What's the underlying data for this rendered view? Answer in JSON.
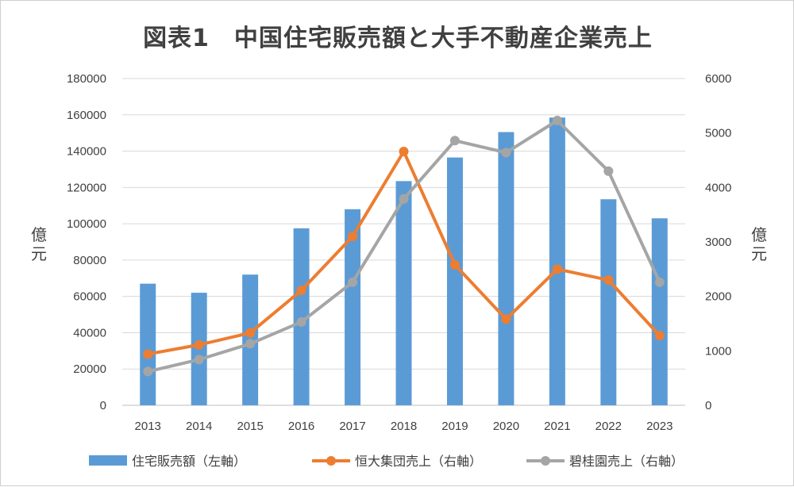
{
  "chart_data": {
    "type": "bar",
    "title": "図表1　中国住宅販売額と大手不動産企業売上",
    "ylabel": "億元",
    "y2label": "億元",
    "categories": [
      "2013",
      "2014",
      "2015",
      "2016",
      "2017",
      "2018",
      "2019",
      "2020",
      "2021",
      "2022",
      "2023"
    ],
    "ylim": [
      0,
      180000
    ],
    "y2lim": [
      0,
      6000
    ],
    "yticks": [
      "0",
      "20000",
      "40000",
      "60000",
      "80000",
      "100000",
      "120000",
      "140000",
      "160000",
      "180000"
    ],
    "y2ticks": [
      "0",
      "1000",
      "2000",
      "3000",
      "4000",
      "5000",
      "6000"
    ],
    "grid": true,
    "legend_position": "bottom",
    "series": [
      {
        "name": "住宅販売額（左軸）",
        "type": "bar",
        "axis": "left",
        "color": "#5b9bd5",
        "values": [
          67000,
          62000,
          72000,
          97500,
          108000,
          123500,
          136500,
          150500,
          158500,
          113500,
          103000
        ]
      },
      {
        "name": "恒大集団売上（右軸）",
        "type": "line",
        "axis": "right",
        "color": "#ed7d31",
        "values": [
          940,
          1110,
          1330,
          2110,
          3100,
          4660,
          2580,
          1580,
          2500,
          2300,
          1280
        ]
      },
      {
        "name": "碧桂園売上（右軸）",
        "type": "line",
        "axis": "right",
        "color": "#a5a5a5",
        "values": [
          620,
          840,
          1130,
          1530,
          2260,
          3790,
          4860,
          4640,
          5230,
          4300,
          2260
        ]
      }
    ]
  }
}
